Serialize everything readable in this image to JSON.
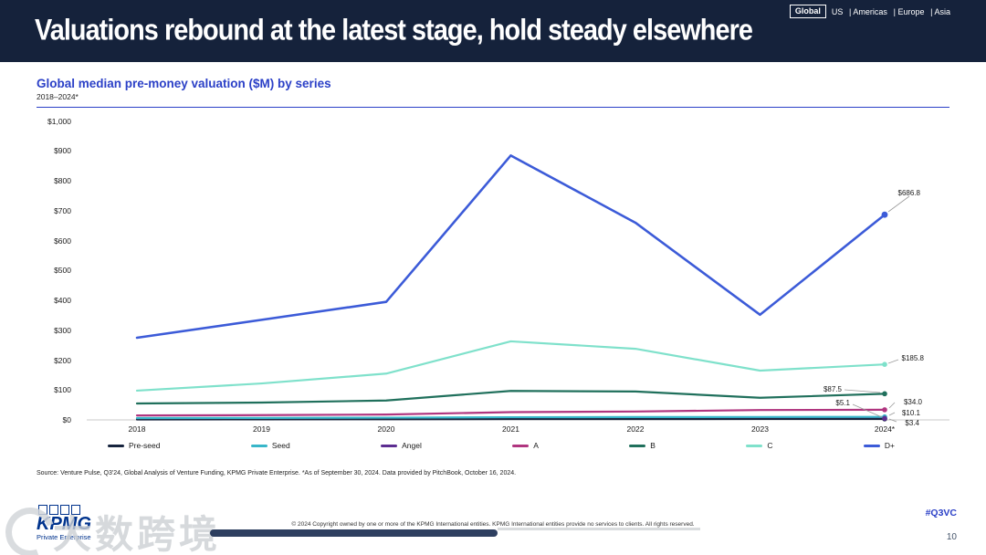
{
  "header": {
    "title": "Valuations rebound at the latest stage, hold steady elsewhere",
    "region_tabs": {
      "active": "Global",
      "others": [
        "US",
        "Americas",
        "Europe",
        "Asia"
      ]
    }
  },
  "chart": {
    "title": "Global median pre-money valuation ($M) by series",
    "subtitle": "2018–2024*"
  },
  "chart_data": {
    "type": "line",
    "categories": [
      "2018",
      "2019",
      "2020",
      "2021",
      "2022",
      "2023",
      "2024*"
    ],
    "y_ticks": [
      "$1,000",
      "$900",
      "$800",
      "$700",
      "$600",
      "$500",
      "$400",
      "$300",
      "$200",
      "$100",
      "$0"
    ],
    "ylim": [
      0,
      1000
    ],
    "grid": "baseline-only",
    "legend_position": "bottom",
    "series": [
      {
        "name": "Pre-seed",
        "color": "#17243e",
        "values": [
          1.5,
          1.8,
          2.2,
          2.8,
          3.0,
          3.2,
          3.4
        ],
        "final_label": "$3.4"
      },
      {
        "name": "Seed",
        "color": "#38b6c9",
        "values": [
          6.0,
          6.5,
          7.5,
          9.0,
          9.5,
          9.8,
          10.1
        ],
        "final_label": "$10.1"
      },
      {
        "name": "Angel",
        "color": "#5c2d91",
        "values": [
          5.0,
          5.0,
          5.2,
          5.5,
          5.5,
          5.2,
          5.1
        ],
        "final_label": "$5.1"
      },
      {
        "name": "A",
        "color": "#b0357f",
        "values": [
          15,
          16,
          18,
          26,
          28,
          33,
          34.0
        ],
        "final_label": "$34.0"
      },
      {
        "name": "B",
        "color": "#20705c",
        "values": [
          55,
          58,
          65,
          97,
          95,
          74,
          87.5
        ],
        "final_label": "$87.5"
      },
      {
        "name": "C",
        "color": "#7fe1cb",
        "values": [
          98,
          122,
          155,
          263,
          238,
          165,
          185.8
        ],
        "final_label": "$185.8"
      },
      {
        "name": "D+",
        "color": "#3c5bd8",
        "values": [
          275,
          335,
          395,
          885,
          660,
          352,
          686.8
        ],
        "final_label": "$686.8"
      }
    ]
  },
  "source": "Source: Venture Pulse, Q3'24, Global Analysis of Venture Funding, KPMG Private Enterprise. *As of September 30, 2024. Data provided by PitchBook, October 16, 2024.",
  "footer": {
    "logo": "KPMG",
    "logo_sub": "Private Enterprise",
    "copyright": "© 2024 Copyright owned by one or more of the KPMG International entities. KPMG International entities provide no services to clients. All rights reserved.",
    "hashtag": "#Q3VC",
    "page_number": "10"
  },
  "watermark": {
    "text": "大数跨境"
  }
}
